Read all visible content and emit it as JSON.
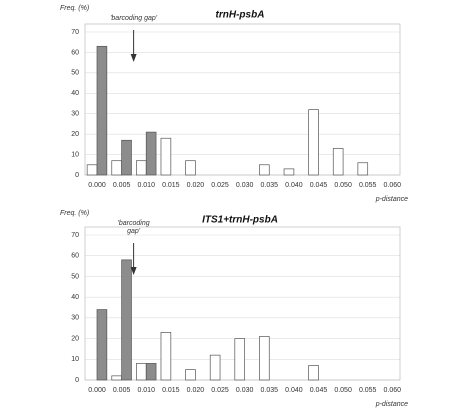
{
  "chart_data": [
    {
      "type": "bar",
      "title": "trnH-psbA",
      "y_label": "Freq. (%)",
      "x_label": "p-distance",
      "annotation": [
        "'barcoding gap'"
      ],
      "categories": [
        "0.000",
        "0.005",
        "0.010",
        "0.015",
        "0.020",
        "0.025",
        "0.030",
        "0.035",
        "0.040",
        "0.045",
        "0.050",
        "0.055",
        "0.060"
      ],
      "series": [
        {
          "color": "#ffffff",
          "values": [
            5,
            7,
            7,
            18,
            7,
            0,
            0,
            5,
            3,
            32,
            13,
            6,
            0
          ]
        },
        {
          "color": "#8c8c8c",
          "values": [
            63,
            17,
            21,
            0,
            0,
            0,
            0,
            0,
            0,
            0,
            0,
            0,
            0
          ]
        }
      ],
      "ylim": [
        0,
        70
      ],
      "yticks": [
        0,
        10,
        20,
        30,
        40,
        50,
        60,
        70
      ],
      "grid": true
    },
    {
      "type": "bar",
      "title": "ITS1+trnH-psbA",
      "y_label": "Freq. (%)",
      "x_label": "p-distance",
      "annotation": [
        "'barcoding",
        "gap'"
      ],
      "categories": [
        "0.000",
        "0.005",
        "0.010",
        "0.015",
        "0.020",
        "0.025",
        "0.030",
        "0.035",
        "0.040",
        "0.045",
        "0.050",
        "0.055",
        "0.060"
      ],
      "series": [
        {
          "color": "#ffffff",
          "values": [
            0,
            2,
            8,
            23,
            5,
            12,
            20,
            21,
            0,
            7,
            0,
            0,
            0
          ]
        },
        {
          "color": "#8c8c8c",
          "values": [
            34,
            58,
            8,
            0,
            0,
            0,
            0,
            0,
            0,
            0,
            0,
            0,
            0
          ]
        }
      ],
      "ylim": [
        0,
        70
      ],
      "yticks": [
        0,
        10,
        20,
        30,
        40,
        50,
        60,
        70
      ],
      "grid": true
    }
  ]
}
